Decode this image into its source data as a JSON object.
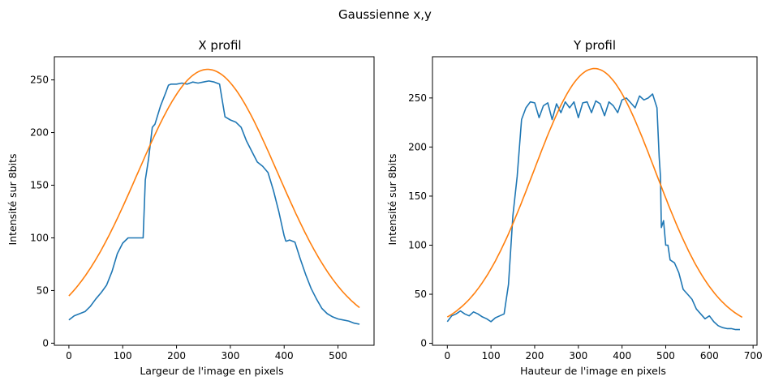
{
  "chart_data": [
    {
      "type": "line",
      "figure_title": "Gaussienne x,y",
      "title": "X profil",
      "xlabel": "Largeur de l'image en pixels",
      "ylabel": "Intensité sur 8bits",
      "xlim": [
        -27,
        567
      ],
      "ylim": [
        -2,
        272
      ],
      "xticks": [
        0,
        100,
        200,
        300,
        400,
        500
      ],
      "yticks": [
        0,
        50,
        100,
        150,
        200,
        250
      ],
      "grid": false,
      "series": [
        {
          "color": "#1f77b4",
          "x": [
            0,
            10,
            20,
            30,
            40,
            50,
            60,
            70,
            80,
            90,
            100,
            110,
            120,
            130,
            138,
            142,
            148,
            155,
            160,
            170,
            180,
            185,
            190,
            200,
            210,
            220,
            230,
            240,
            250,
            260,
            270,
            280,
            290,
            300,
            310,
            320,
            330,
            340,
            350,
            360,
            370,
            380,
            390,
            400,
            403,
            405,
            410,
            420,
            430,
            440,
            450,
            460,
            470,
            480,
            490,
            500,
            510,
            520,
            530,
            540
          ],
          "y": [
            22,
            26,
            28,
            30,
            35,
            42,
            48,
            55,
            68,
            85,
            95,
            100,
            100,
            100,
            100,
            155,
            175,
            205,
            208,
            225,
            238,
            245,
            246,
            246,
            247,
            246,
            248,
            247,
            248,
            249,
            248,
            246,
            215,
            212,
            210,
            205,
            192,
            182,
            172,
            168,
            162,
            145,
            125,
            102,
            97,
            97,
            98,
            96,
            80,
            65,
            52,
            42,
            33,
            28,
            25,
            23,
            22,
            21,
            19,
            18
          ]
        },
        {
          "color": "#ff7f0e",
          "gaussian": {
            "amplitude": 250,
            "mean": 258,
            "sigma": 130,
            "offset": 10
          },
          "x_range": [
            0,
            540
          ]
        }
      ]
    },
    {
      "type": "line",
      "title": "Y profil",
      "xlabel": "Hauteur de l'image en pixels",
      "ylabel": "Intensité sur 8bits",
      "xlim": [
        -34,
        709
      ],
      "ylim": [
        -2,
        292
      ],
      "xticks": [
        0,
        100,
        200,
        300,
        400,
        500,
        600,
        700
      ],
      "yticks": [
        0,
        50,
        100,
        150,
        200,
        250
      ],
      "grid": false,
      "series": [
        {
          "color": "#1f77b4",
          "x": [
            0,
            10,
            20,
            30,
            40,
            50,
            60,
            70,
            80,
            90,
            100,
            110,
            120,
            130,
            140,
            150,
            160,
            170,
            180,
            190,
            200,
            210,
            220,
            230,
            240,
            250,
            260,
            270,
            280,
            290,
            300,
            310,
            320,
            330,
            340,
            350,
            360,
            370,
            380,
            390,
            400,
            410,
            420,
            430,
            440,
            450,
            460,
            470,
            480,
            485,
            488,
            490,
            495,
            500,
            505,
            510,
            520,
            530,
            540,
            550,
            560,
            570,
            580,
            590,
            600,
            610,
            620,
            630,
            640,
            650,
            660,
            670
          ],
          "y": [
            22,
            28,
            30,
            33,
            30,
            28,
            32,
            30,
            27,
            25,
            22,
            26,
            28,
            30,
            60,
            130,
            170,
            228,
            240,
            246,
            245,
            230,
            242,
            245,
            228,
            244,
            235,
            246,
            240,
            246,
            230,
            245,
            246,
            235,
            247,
            244,
            232,
            246,
            242,
            235,
            248,
            250,
            245,
            240,
            252,
            248,
            250,
            254,
            240,
            190,
            170,
            118,
            125,
            100,
            100,
            85,
            82,
            72,
            55,
            50,
            45,
            35,
            30,
            25,
            28,
            22,
            18,
            16,
            15,
            15,
            14,
            14
          ]
        },
        {
          "color": "#ff7f0e",
          "gaussian": {
            "amplitude": 268,
            "mean": 337,
            "sigma": 140,
            "offset": 12
          },
          "x_range": [
            0,
            675
          ]
        }
      ]
    }
  ]
}
